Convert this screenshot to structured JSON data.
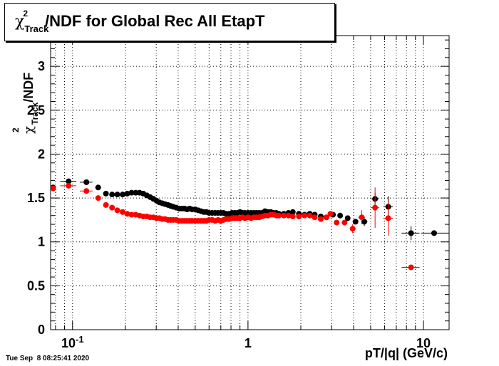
{
  "title": {
    "chi": "χ",
    "sup": "2",
    "sub": "Track",
    "rest": "/NDF for Global Rec All EtapT"
  },
  "footer": {
    "timestamp": "Tue Sep  8 08:25:41 2020"
  },
  "colors": {
    "series1": "#000000",
    "series2": "#ff0000",
    "grid": "#000000"
  },
  "chart_data": {
    "type": "scatter",
    "title": "χ2 Track /NDF for Global Rec All EtapT",
    "xlabel": "pT/|q| (GeV/c)",
    "ylabel": "χ2 Track /NDF",
    "ylabel_parts": {
      "chi": "χ",
      "sup": "2",
      "sub": "Track",
      "rest": "/NDF"
    },
    "xscale": "log",
    "xlim": [
      0.075,
      14
    ],
    "ylim": [
      0,
      3.35
    ],
    "grid": true,
    "x_ticks": [
      {
        "value": 0.1,
        "label": "10",
        "exp": "-1"
      },
      {
        "value": 1,
        "label": "1",
        "exp": ""
      },
      {
        "value": 10,
        "label": "10",
        "exp": ""
      }
    ],
    "y_ticks": [
      {
        "value": 0,
        "label": "0"
      },
      {
        "value": 0.5,
        "label": "0.5"
      },
      {
        "value": 1,
        "label": "1"
      },
      {
        "value": 1.5,
        "label": "1.5"
      },
      {
        "value": 2,
        "label": "2"
      },
      {
        "value": 2.5,
        "label": "2.5"
      },
      {
        "value": 3,
        "label": "3"
      }
    ],
    "series": [
      {
        "color": "black",
        "points": [
          [
            0.0775,
            1.62,
            0.0025,
            0.01
          ],
          [
            0.095,
            1.69,
            0.01,
            0.01
          ],
          [
            0.12,
            1.68,
            0.01,
            0.01
          ],
          [
            0.14,
            1.62,
            0.005,
            0.01
          ],
          [
            0.155,
            1.55,
            0.005,
            0.01
          ],
          [
            0.168,
            1.54,
            0.005,
            0.01
          ],
          [
            0.18,
            1.54,
            0.005,
            0.01
          ],
          [
            0.193,
            1.54,
            0.005,
            0.01
          ],
          [
            0.205,
            1.55,
            0.005,
            0.01
          ],
          [
            0.217,
            1.56,
            0.005,
            0.01
          ],
          [
            0.229,
            1.56,
            0.005,
            0.01
          ],
          [
            0.241,
            1.56,
            0.005,
            0.01
          ],
          [
            0.253,
            1.55,
            0.005,
            0.01
          ],
          [
            0.265,
            1.53,
            0.005,
            0.01
          ],
          [
            0.277,
            1.51,
            0.005,
            0.01
          ],
          [
            0.289,
            1.49,
            0.005,
            0.01
          ],
          [
            0.301,
            1.47,
            0.005,
            0.01
          ],
          [
            0.313,
            1.45,
            0.005,
            0.01
          ],
          [
            0.325,
            1.44,
            0.005,
            0.01
          ],
          [
            0.337,
            1.43,
            0.005,
            0.01
          ],
          [
            0.35,
            1.42,
            0.005,
            0.01
          ],
          [
            0.362,
            1.41,
            0.005,
            0.01
          ],
          [
            0.375,
            1.4,
            0.005,
            0.01
          ],
          [
            0.39,
            1.39,
            0.005,
            0.01
          ],
          [
            0.405,
            1.38,
            0.005,
            0.01
          ],
          [
            0.42,
            1.38,
            0.005,
            0.01
          ],
          [
            0.435,
            1.38,
            0.005,
            0.01
          ],
          [
            0.45,
            1.37,
            0.005,
            0.01
          ],
          [
            0.465,
            1.38,
            0.005,
            0.01
          ],
          [
            0.48,
            1.37,
            0.005,
            0.01
          ],
          [
            0.5,
            1.37,
            0.005,
            0.01
          ],
          [
            0.52,
            1.36,
            0.005,
            0.01
          ],
          [
            0.54,
            1.35,
            0.005,
            0.01
          ],
          [
            0.56,
            1.34,
            0.005,
            0.01
          ],
          [
            0.58,
            1.34,
            0.005,
            0.01
          ],
          [
            0.6,
            1.33,
            0.005,
            0.01
          ],
          [
            0.625,
            1.33,
            0.005,
            0.01
          ],
          [
            0.65,
            1.33,
            0.005,
            0.01
          ],
          [
            0.675,
            1.33,
            0.005,
            0.01
          ],
          [
            0.7,
            1.33,
            0.005,
            0.01
          ],
          [
            0.725,
            1.33,
            0.005,
            0.01
          ],
          [
            0.75,
            1.32,
            0.005,
            0.01
          ],
          [
            0.78,
            1.32,
            0.005,
            0.01
          ],
          [
            0.81,
            1.33,
            0.005,
            0.01
          ],
          [
            0.84,
            1.33,
            0.005,
            0.01
          ],
          [
            0.87,
            1.33,
            0.005,
            0.01
          ],
          [
            0.9,
            1.34,
            0.005,
            0.01
          ],
          [
            0.93,
            1.33,
            0.005,
            0.01
          ],
          [
            0.96,
            1.33,
            0.005,
            0.01
          ],
          [
            1.0,
            1.33,
            0.01,
            0.01
          ],
          [
            1.04,
            1.33,
            0.01,
            0.01
          ],
          [
            1.08,
            1.33,
            0.01,
            0.01
          ],
          [
            1.12,
            1.33,
            0.01,
            0.01
          ],
          [
            1.16,
            1.33,
            0.01,
            0.01
          ],
          [
            1.2,
            1.33,
            0.01,
            0.01
          ],
          [
            1.25,
            1.35,
            0.01,
            0.01
          ],
          [
            1.3,
            1.34,
            0.01,
            0.01
          ],
          [
            1.35,
            1.34,
            0.01,
            0.01
          ],
          [
            1.4,
            1.33,
            0.01,
            0.01
          ],
          [
            1.45,
            1.33,
            0.01,
            0.01
          ],
          [
            1.5,
            1.32,
            0.01,
            0.01
          ],
          [
            1.6,
            1.32,
            0.02,
            0.01
          ],
          [
            1.7,
            1.33,
            0.02,
            0.01
          ],
          [
            1.8,
            1.34,
            0.03,
            0.01
          ],
          [
            1.95,
            1.32,
            0.03,
            0.01
          ],
          [
            2.1,
            1.31,
            0.03,
            0.01
          ],
          [
            2.25,
            1.32,
            0.03,
            0.01
          ],
          [
            2.4,
            1.31,
            0.03,
            0.02
          ],
          [
            2.6,
            1.29,
            0.05,
            0.02
          ],
          [
            2.8,
            1.28,
            0.05,
            0.02
          ],
          [
            3.05,
            1.31,
            0.08,
            0.02
          ],
          [
            3.35,
            1.3,
            0.08,
            0.02
          ],
          [
            3.7,
            1.27,
            0.1,
            0.03
          ],
          [
            4.1,
            1.23,
            0.15,
            0.03
          ],
          [
            4.6,
            1.23,
            0.2,
            0.05
          ],
          [
            5.3,
            1.49,
            0.25,
            0.07
          ],
          [
            6.3,
            1.4,
            0.4,
            0.12
          ],
          [
            8.5,
            1.1,
            1.0,
            0.08
          ],
          [
            11.5,
            1.1,
            1.8,
            0.02
          ]
        ]
      },
      {
        "color": "red",
        "points": [
          [
            0.0775,
            1.61,
            0.0025,
            0.01
          ],
          [
            0.095,
            1.64,
            0.01,
            0.01
          ],
          [
            0.12,
            1.58,
            0.01,
            0.01
          ],
          [
            0.14,
            1.5,
            0.005,
            0.01
          ],
          [
            0.155,
            1.42,
            0.005,
            0.01
          ],
          [
            0.168,
            1.39,
            0.005,
            0.01
          ],
          [
            0.18,
            1.36,
            0.005,
            0.01
          ],
          [
            0.193,
            1.34,
            0.005,
            0.01
          ],
          [
            0.205,
            1.32,
            0.005,
            0.01
          ],
          [
            0.217,
            1.31,
            0.005,
            0.01
          ],
          [
            0.229,
            1.31,
            0.005,
            0.01
          ],
          [
            0.241,
            1.3,
            0.005,
            0.01
          ],
          [
            0.253,
            1.29,
            0.005,
            0.01
          ],
          [
            0.265,
            1.29,
            0.005,
            0.01
          ],
          [
            0.277,
            1.28,
            0.005,
            0.01
          ],
          [
            0.289,
            1.28,
            0.005,
            0.01
          ],
          [
            0.301,
            1.27,
            0.005,
            0.01
          ],
          [
            0.313,
            1.27,
            0.005,
            0.01
          ],
          [
            0.325,
            1.26,
            0.005,
            0.01
          ],
          [
            0.337,
            1.26,
            0.005,
            0.01
          ],
          [
            0.35,
            1.25,
            0.005,
            0.01
          ],
          [
            0.362,
            1.25,
            0.005,
            0.01
          ],
          [
            0.375,
            1.25,
            0.005,
            0.01
          ],
          [
            0.39,
            1.25,
            0.005,
            0.01
          ],
          [
            0.405,
            1.24,
            0.005,
            0.01
          ],
          [
            0.42,
            1.24,
            0.005,
            0.01
          ],
          [
            0.435,
            1.24,
            0.005,
            0.01
          ],
          [
            0.45,
            1.24,
            0.005,
            0.01
          ],
          [
            0.465,
            1.24,
            0.005,
            0.01
          ],
          [
            0.48,
            1.24,
            0.005,
            0.01
          ],
          [
            0.5,
            1.24,
            0.005,
            0.01
          ],
          [
            0.52,
            1.24,
            0.005,
            0.01
          ],
          [
            0.54,
            1.24,
            0.005,
            0.01
          ],
          [
            0.56,
            1.24,
            0.005,
            0.01
          ],
          [
            0.58,
            1.24,
            0.005,
            0.01
          ],
          [
            0.6,
            1.25,
            0.005,
            0.01
          ],
          [
            0.625,
            1.25,
            0.005,
            0.01
          ],
          [
            0.65,
            1.24,
            0.005,
            0.01
          ],
          [
            0.675,
            1.25,
            0.005,
            0.01
          ],
          [
            0.7,
            1.24,
            0.005,
            0.01
          ],
          [
            0.725,
            1.25,
            0.005,
            0.01
          ],
          [
            0.75,
            1.26,
            0.005,
            0.01
          ],
          [
            0.78,
            1.26,
            0.005,
            0.01
          ],
          [
            0.81,
            1.27,
            0.005,
            0.01
          ],
          [
            0.84,
            1.27,
            0.005,
            0.01
          ],
          [
            0.87,
            1.27,
            0.005,
            0.01
          ],
          [
            0.9,
            1.27,
            0.005,
            0.01
          ],
          [
            0.93,
            1.28,
            0.005,
            0.01
          ],
          [
            0.96,
            1.27,
            0.005,
            0.01
          ],
          [
            1.0,
            1.28,
            0.01,
            0.01
          ],
          [
            1.04,
            1.27,
            0.01,
            0.01
          ],
          [
            1.08,
            1.28,
            0.01,
            0.01
          ],
          [
            1.12,
            1.28,
            0.01,
            0.01
          ],
          [
            1.16,
            1.28,
            0.01,
            0.01
          ],
          [
            1.2,
            1.29,
            0.01,
            0.01
          ],
          [
            1.25,
            1.3,
            0.01,
            0.01
          ],
          [
            1.3,
            1.3,
            0.01,
            0.01
          ],
          [
            1.35,
            1.31,
            0.01,
            0.01
          ],
          [
            1.4,
            1.31,
            0.01,
            0.01
          ],
          [
            1.45,
            1.3,
            0.01,
            0.01
          ],
          [
            1.5,
            1.3,
            0.01,
            0.01
          ],
          [
            1.6,
            1.3,
            0.02,
            0.01
          ],
          [
            1.7,
            1.3,
            0.02,
            0.01
          ],
          [
            1.8,
            1.29,
            0.03,
            0.01
          ],
          [
            1.95,
            1.29,
            0.03,
            0.01
          ],
          [
            2.1,
            1.3,
            0.03,
            0.01
          ],
          [
            2.25,
            1.3,
            0.03,
            0.01
          ],
          [
            2.4,
            1.28,
            0.03,
            0.02
          ],
          [
            2.6,
            1.26,
            0.05,
            0.03
          ],
          [
            2.8,
            1.28,
            0.05,
            0.03
          ],
          [
            2.95,
            1.32,
            0.06,
            0.03
          ],
          [
            3.2,
            1.22,
            0.08,
            0.03
          ],
          [
            3.55,
            1.22,
            0.1,
            0.03
          ],
          [
            3.95,
            1.15,
            0.15,
            0.05
          ],
          [
            4.45,
            1.28,
            0.2,
            0.08
          ],
          [
            5.3,
            1.39,
            0.3,
            0.23
          ],
          [
            6.3,
            1.27,
            0.4,
            0.2
          ],
          [
            8.5,
            0.71,
            1.0,
            0.02
          ]
        ]
      }
    ]
  }
}
